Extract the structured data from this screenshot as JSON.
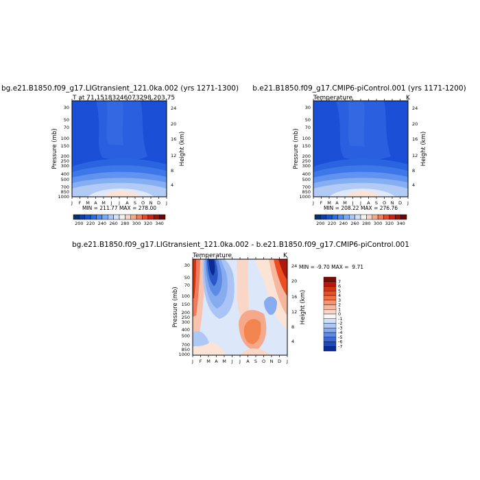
{
  "chart_data": [
    {
      "type": "heatmap",
      "title": "bg.e21.B1850.f09_g17.LIGtransient_121.0ka.002 (yrs 1271-1300)",
      "subtitle_left": "T at 71.15183246073298,203.75",
      "subtitle_right": "",
      "stats": "MIN = 211.77 MAX = 278.00",
      "xlabel": "",
      "ylabel": "Pressure (mb)",
      "ylabel_right": "Height (km)",
      "months": [
        "J",
        "F",
        "M",
        "A",
        "M",
        "J",
        "J",
        "A",
        "S",
        "O",
        "N",
        "D",
        "J"
      ],
      "pressure_ticks": [
        "30",
        "50",
        "70",
        "100",
        "150",
        "200",
        "250",
        "300",
        "400",
        "500",
        "700",
        "850",
        "1000"
      ],
      "height_ticks": [
        "24",
        "20",
        "16",
        "12",
        "8",
        "4"
      ],
      "z_range": [
        211.77,
        278.0
      ]
    },
    {
      "type": "heatmap",
      "title": "b.e21.B1850.f09_g17.CMIP6-piControl.001 (yrs 1171-1200)",
      "subtitle_left": "Temperature",
      "subtitle_right": "K",
      "stats": "MIN = 208.22 MAX = 276.76",
      "xlabel": "",
      "ylabel": "Pressure (mb)",
      "ylabel_right": "Height (km)",
      "months": [
        "J",
        "F",
        "M",
        "A",
        "M",
        "J",
        "J",
        "A",
        "S",
        "O",
        "N",
        "D",
        "J"
      ],
      "pressure_ticks": [
        "30",
        "50",
        "70",
        "100",
        "150",
        "200",
        "250",
        "300",
        "400",
        "500",
        "700",
        "850",
        "1000"
      ],
      "height_ticks": [
        "24",
        "20",
        "16",
        "12",
        "8",
        "4"
      ],
      "z_range": [
        208.22,
        276.76
      ]
    },
    {
      "type": "heatmap",
      "title": "bg.e21.B1850.f09_g17.LIGtransient_121.0ka.002 - b.e21.B1850.f09_g17.CMIP6-piControl.001",
      "subtitle_left": "Temperature",
      "subtitle_right": "K",
      "stats": "MIN = -9.70 MAX =  9.71",
      "xlabel": "",
      "ylabel": "Pressure (mb)",
      "ylabel_right": "Height (km)",
      "months": [
        "J",
        "F",
        "M",
        "A",
        "M",
        "J",
        "J",
        "A",
        "S",
        "O",
        "N",
        "D",
        "J"
      ],
      "pressure_ticks": [
        "30",
        "50",
        "70",
        "100",
        "150",
        "200",
        "250",
        "300",
        "400",
        "500",
        "700",
        "850",
        "1000"
      ],
      "height_ticks": [
        "24",
        "20",
        "16",
        "12",
        "8",
        "4"
      ],
      "z_range": [
        -9.7,
        9.71
      ]
    }
  ],
  "colorbar_abs": {
    "labels": [
      "200",
      "220",
      "240",
      "260",
      "280",
      "300",
      "320",
      "340"
    ],
    "colors": [
      "#08306b",
      "#0b3fa3",
      "#1552cc",
      "#2a6fe0",
      "#4a8cf0",
      "#7aaaf5",
      "#a9c8f7",
      "#d0e2fa",
      "#f2f2f2",
      "#fbd3c0",
      "#f6a98a",
      "#ee7b5a",
      "#e34a30",
      "#c82514",
      "#9c1108",
      "#6a0503"
    ]
  },
  "colorbar_diff": {
    "labels": [
      "7",
      "6",
      "5",
      "4",
      "3",
      "2",
      "1",
      "0",
      "-1",
      "-2",
      "-3",
      "-4",
      "-5",
      "-6",
      "-7"
    ],
    "colors": [
      "#7a0a05",
      "#b01a0c",
      "#d5300f",
      "#ec4d22",
      "#f2703f",
      "#f59470",
      "#f7b79c",
      "#fad6c6",
      "#f7f7f7",
      "#d0e0f8",
      "#adc8f5",
      "#86abee",
      "#5d8ae3",
      "#3a69d3",
      "#1f48ba",
      "#0b2b94"
    ]
  }
}
